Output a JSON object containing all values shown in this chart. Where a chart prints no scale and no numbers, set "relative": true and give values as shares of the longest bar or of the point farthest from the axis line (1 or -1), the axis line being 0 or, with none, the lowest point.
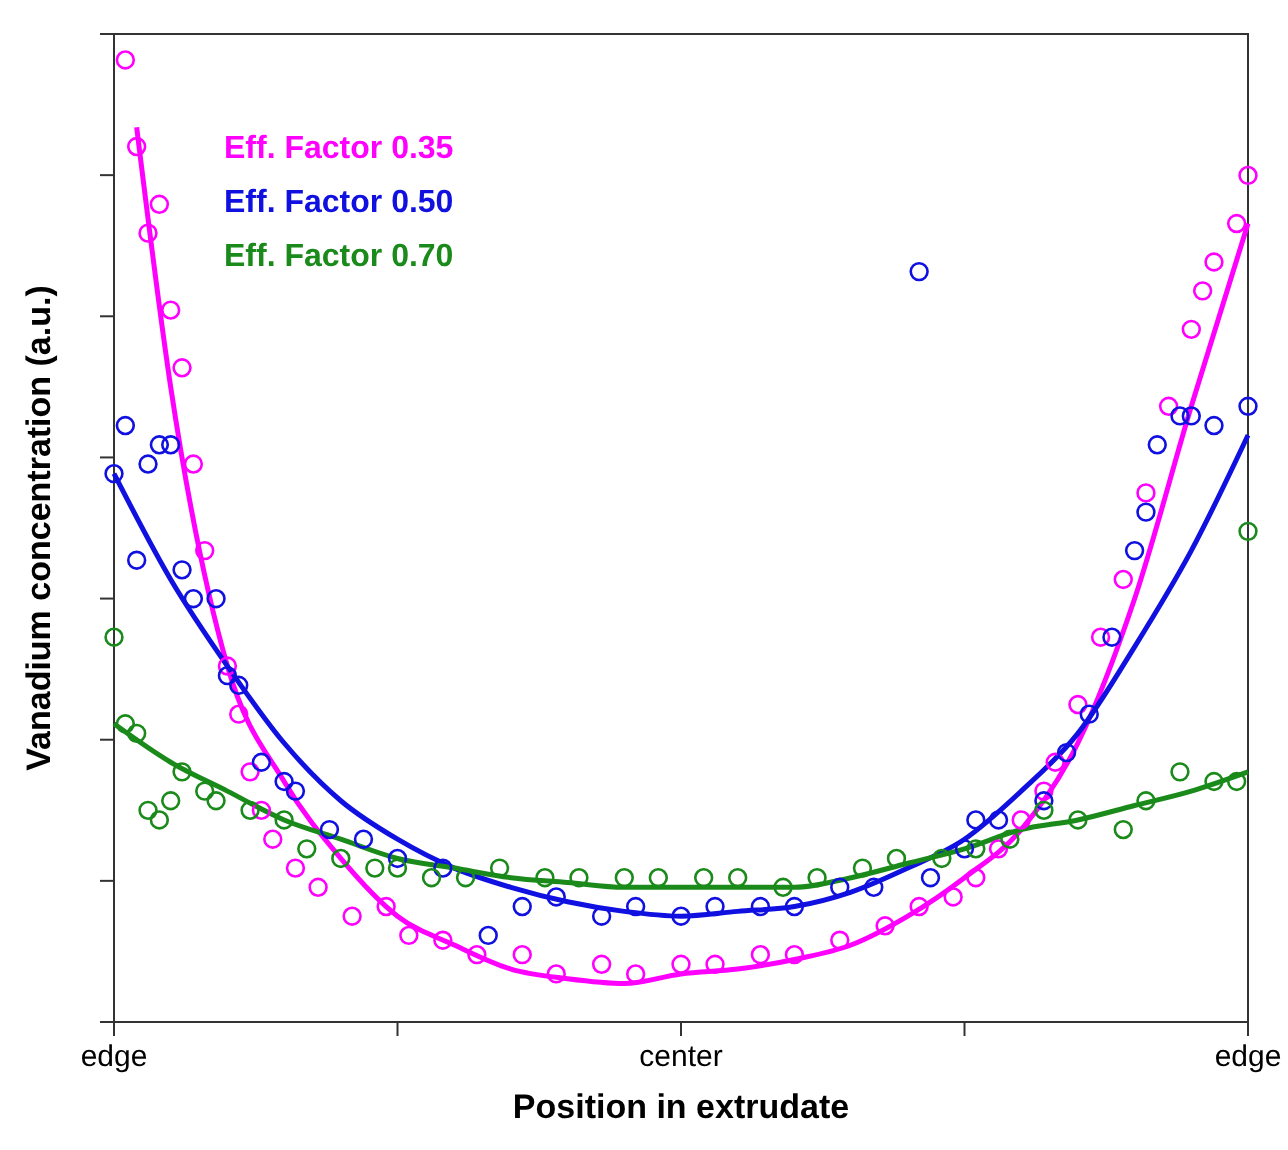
{
  "chart_data": {
    "type": "scatter",
    "relative": true,
    "xlabel": "Position in extrudate",
    "ylabel": "Vanadium concentration (a.u.)",
    "categories": [
      "edge",
      null,
      null,
      null,
      null,
      null,
      null,
      null,
      null,
      null,
      null,
      null,
      null,
      null,
      null,
      null,
      null,
      null,
      null,
      null,
      null,
      null,
      null,
      null,
      null,
      null,
      null,
      null,
      null,
      null,
      null,
      null,
      null,
      null,
      null,
      null,
      null,
      null,
      null,
      null,
      null,
      null,
      null,
      null,
      null,
      null,
      null,
      null,
      null,
      null,
      "center",
      null,
      null,
      null,
      null,
      null,
      null,
      null,
      null,
      null,
      null,
      null,
      null,
      null,
      null,
      null,
      null,
      null,
      null,
      null,
      null,
      null,
      null,
      null,
      null,
      null,
      null,
      null,
      null,
      null,
      null,
      null,
      null,
      null,
      null,
      null,
      null,
      null,
      null,
      null,
      null,
      null,
      null,
      null,
      null,
      null,
      null,
      null,
      null,
      null,
      "edge"
    ],
    "legend": "top left",
    "marker": "circle",
    "series": [
      {
        "name": "Eff. Factor 0.35",
        "color": "#ff00ff",
        "values": [
          null,
          1.0,
          0.91,
          0.82,
          0.85,
          0.74,
          0.68,
          0.58,
          0.49,
          null,
          0.37,
          0.32,
          0.26,
          0.22,
          0.19,
          null,
          0.16,
          null,
          0.14,
          null,
          null,
          0.11,
          null,
          null,
          0.12,
          null,
          0.09,
          null,
          null,
          0.085,
          null,
          null,
          0.07,
          null,
          null,
          null,
          0.07,
          null,
          null,
          0.05,
          null,
          null,
          null,
          0.06,
          null,
          null,
          0.05,
          null,
          null,
          null,
          0.06,
          null,
          null,
          0.06,
          null,
          null,
          null,
          0.07,
          null,
          null,
          0.07,
          null,
          null,
          null,
          0.085,
          null,
          null,
          null,
          0.1,
          null,
          null,
          0.12,
          null,
          null,
          0.13,
          null,
          0.15,
          null,
          0.18,
          null,
          0.21,
          null,
          0.24,
          0.27,
          null,
          0.33,
          null,
          0.4,
          null,
          0.46,
          null,
          0.55,
          null,
          0.64,
          null,
          0.72,
          0.76,
          0.79,
          null,
          0.83,
          0.88
        ]
      },
      {
        "name": "Eff. Factor 0.50",
        "color": "#1010e0",
        "values": [
          0.57,
          0.62,
          0.48,
          0.58,
          0.6,
          0.6,
          0.47,
          0.44,
          null,
          0.44,
          0.36,
          0.35,
          null,
          0.27,
          null,
          0.25,
          0.24,
          null,
          null,
          0.2,
          null,
          null,
          0.19,
          null,
          null,
          0.17,
          null,
          null,
          null,
          0.16,
          null,
          null,
          null,
          0.09,
          null,
          null,
          0.12,
          null,
          null,
          0.13,
          null,
          null,
          null,
          0.11,
          null,
          null,
          0.12,
          null,
          null,
          null,
          0.11,
          null,
          null,
          0.12,
          null,
          null,
          null,
          0.12,
          null,
          null,
          0.12,
          null,
          null,
          null,
          0.14,
          null,
          null,
          0.14,
          null,
          null,
          null,
          0.78,
          0.15,
          null,
          null,
          0.18,
          0.21,
          null,
          0.21,
          null,
          null,
          null,
          0.23,
          null,
          0.28,
          null,
          0.32,
          null,
          0.4,
          null,
          0.49,
          0.53,
          0.6,
          null,
          0.63,
          0.63,
          null,
          0.62,
          null,
          null,
          0.64
        ]
      },
      {
        "name": "Eff. Factor 0.70",
        "color": "#1a8a1a",
        "values": [
          0.4,
          0.31,
          0.3,
          0.22,
          0.21,
          0.23,
          0.26,
          null,
          0.24,
          0.23,
          null,
          null,
          0.22,
          null,
          null,
          0.21,
          null,
          0.18,
          null,
          null,
          0.17,
          null,
          null,
          0.16,
          null,
          0.16,
          null,
          null,
          0.15,
          null,
          null,
          0.15,
          null,
          null,
          0.16,
          null,
          null,
          null,
          0.15,
          null,
          null,
          0.15,
          null,
          null,
          null,
          0.15,
          null,
          null,
          0.15,
          null,
          null,
          null,
          0.15,
          null,
          null,
          0.15,
          null,
          null,
          null,
          0.14,
          null,
          null,
          0.15,
          null,
          null,
          null,
          0.16,
          null,
          null,
          0.17,
          null,
          null,
          null,
          0.17,
          null,
          null,
          0.18,
          null,
          null,
          0.19,
          null,
          null,
          0.22,
          null,
          null,
          0.21,
          null,
          null,
          null,
          0.2,
          null,
          0.23,
          null,
          null,
          0.26,
          null,
          null,
          0.25,
          null,
          0.25,
          0.51
        ]
      },
      {
        "type": "line",
        "marker": "none",
        "color": "#ff00ff",
        "values": [
          null,
          null,
          0.93,
          null,
          null,
          0.66,
          null,
          null,
          null,
          null,
          0.37,
          null,
          null,
          null,
          null,
          0.25,
          null,
          null,
          null,
          null,
          0.17,
          null,
          null,
          null,
          null,
          0.11,
          null,
          null,
          null,
          null,
          0.08,
          null,
          null,
          null,
          null,
          0.055,
          null,
          null,
          null,
          null,
          0.045,
          null,
          null,
          null,
          null,
          0.04,
          null,
          null,
          null,
          null,
          0.05,
          null,
          null,
          null,
          null,
          0.055,
          null,
          null,
          null,
          null,
          0.065,
          null,
          null,
          null,
          null,
          0.08,
          null,
          null,
          null,
          null,
          0.11,
          null,
          null,
          null,
          null,
          0.15,
          null,
          null,
          null,
          null,
          0.2,
          null,
          null,
          null,
          null,
          0.29,
          null,
          null,
          null,
          null,
          0.44,
          null,
          null,
          null,
          null,
          0.64,
          null,
          null,
          null,
          null,
          0.83
        ]
      },
      {
        "type": "line",
        "marker": "none",
        "color": "#1010e0",
        "values": [
          0.57,
          null,
          null,
          null,
          null,
          0.46,
          null,
          null,
          null,
          null,
          0.37,
          null,
          null,
          null,
          null,
          0.29,
          null,
          null,
          null,
          null,
          0.23,
          null,
          null,
          null,
          null,
          0.19,
          null,
          null,
          null,
          null,
          0.16,
          null,
          null,
          null,
          null,
          0.14,
          null,
          null,
          null,
          null,
          0.125,
          null,
          null,
          null,
          null,
          0.115,
          null,
          null,
          null,
          null,
          0.11,
          null,
          null,
          null,
          null,
          0.115,
          null,
          null,
          null,
          null,
          0.12,
          null,
          null,
          null,
          null,
          0.135,
          null,
          null,
          null,
          null,
          0.16,
          null,
          null,
          null,
          null,
          0.19,
          null,
          null,
          null,
          null,
          0.24,
          null,
          null,
          null,
          null,
          0.3,
          null,
          null,
          null,
          null,
          0.39,
          null,
          null,
          null,
          null,
          0.49,
          null,
          null,
          null,
          null,
          0.61
        ]
      },
      {
        "type": "line",
        "marker": "none",
        "color": "#1a8a1a",
        "values": [
          0.31,
          null,
          null,
          null,
          null,
          0.27,
          null,
          null,
          null,
          null,
          0.24,
          null,
          null,
          null,
          null,
          0.21,
          null,
          null,
          null,
          null,
          0.19,
          null,
          null,
          null,
          null,
          0.17,
          null,
          null,
          null,
          null,
          0.16,
          null,
          null,
          null,
          null,
          0.15,
          null,
          null,
          null,
          null,
          0.145,
          null,
          null,
          null,
          null,
          0.14,
          null,
          null,
          null,
          null,
          0.14,
          null,
          null,
          null,
          null,
          0.14,
          null,
          null,
          null,
          null,
          0.14,
          null,
          null,
          null,
          null,
          0.15,
          null,
          null,
          null,
          null,
          0.165,
          null,
          null,
          null,
          null,
          0.18,
          null,
          null,
          null,
          null,
          0.2,
          null,
          null,
          null,
          null,
          0.21,
          null,
          null,
          null,
          null,
          0.225,
          null,
          null,
          null,
          null,
          0.24,
          null,
          null,
          null,
          null,
          0.26
        ]
      }
    ]
  }
}
